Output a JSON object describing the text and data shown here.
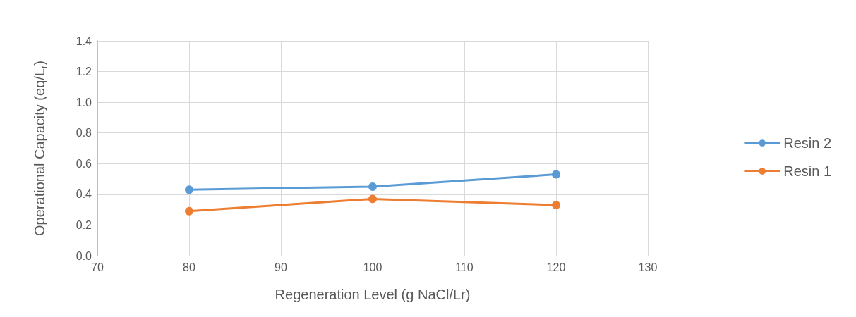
{
  "chart_data": {
    "type": "line",
    "xlabel": "Regeneration Level (g NaCl/Lr)",
    "ylabel": "Operational Capacity (eq/L$_{r}$)",
    "x": [
      80,
      100,
      120
    ],
    "series": [
      {
        "name": "Resin 2",
        "color": "#5b9bd5",
        "values": [
          0.43,
          0.45,
          0.53
        ]
      },
      {
        "name": "Resin 1",
        "color": "#ed7d31",
        "values": [
          0.29,
          0.37,
          0.33
        ]
      }
    ],
    "xlim": [
      70,
      130
    ],
    "xticks": [
      70,
      80,
      90,
      100,
      110,
      120,
      130
    ],
    "ylim": [
      0,
      1.4
    ],
    "yticks": [
      {
        "value": 0,
        "label": "0.0"
      },
      {
        "value": 0.2,
        "label": "0.2"
      },
      {
        "value": 0.4,
        "label": "0.4"
      },
      {
        "value": 0.6,
        "label": "0.6"
      },
      {
        "value": 0.8,
        "label": "0.8"
      },
      {
        "value": 1,
        "label": "1.0"
      },
      {
        "value": 1.2,
        "label": "1.2"
      },
      {
        "value": 1.4,
        "label": "1.4"
      }
    ],
    "grid": true,
    "legend": "right",
    "marker": "circle",
    "line_style": "solid"
  }
}
